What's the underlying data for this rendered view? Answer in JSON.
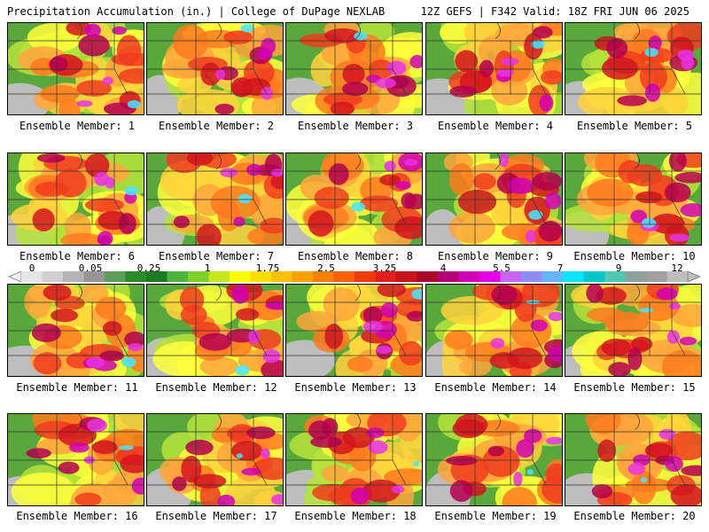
{
  "header": {
    "left": "Precipitation Accumulation (in.) | College of DuPage NEXLAB",
    "right": "12Z GEFS | F342 Valid: 18Z FRI JUN 06 2025"
  },
  "members": [
    {
      "label": "Ensemble Member: 1"
    },
    {
      "label": "Ensemble Member: 2"
    },
    {
      "label": "Ensemble Member: 3"
    },
    {
      "label": "Ensemble Member: 4"
    },
    {
      "label": "Ensemble Member: 5"
    },
    {
      "label": "Ensemble Member: 6"
    },
    {
      "label": "Ensemble Member: 7"
    },
    {
      "label": "Ensemble Member: 8"
    },
    {
      "label": "Ensemble Member: 9"
    },
    {
      "label": "Ensemble Member: 10"
    },
    {
      "label": "Ensemble Member: 11"
    },
    {
      "label": "Ensemble Member: 12"
    },
    {
      "label": "Ensemble Member: 13"
    },
    {
      "label": "Ensemble Member: 14"
    },
    {
      "label": "Ensemble Member: 15"
    },
    {
      "label": "Ensemble Member: 16"
    },
    {
      "label": "Ensemble Member: 17"
    },
    {
      "label": "Ensemble Member: 18"
    },
    {
      "label": "Ensemble Member: 19"
    },
    {
      "label": "Ensemble Member: 20"
    }
  ],
  "colorbar": {
    "tick_labels": [
      "0",
      "0.05",
      "0.25",
      "1",
      "1.75",
      "2.5",
      "3.25",
      "4",
      "5.5",
      "7",
      "9",
      "12"
    ],
    "colors": [
      "#e6e6e6",
      "#cfcfcf",
      "#b4b4b4",
      "#969696",
      "#5a9e5a",
      "#2a8a2a",
      "#1e7a1e",
      "#4fb43c",
      "#7fce2a",
      "#c8e61e",
      "#ffff00",
      "#ffe000",
      "#ffc000",
      "#ffa000",
      "#ff8000",
      "#ff6000",
      "#f03c00",
      "#e11e1e",
      "#c8141e",
      "#aa0a28",
      "#b40078",
      "#d200b4",
      "#e600e6",
      "#c864ff",
      "#8c8cff",
      "#64b4ff",
      "#00e6ff",
      "#00c8c8",
      "#50c8b4",
      "#8ca0a0",
      "#a0a0a0",
      "#bebebe"
    ]
  }
}
